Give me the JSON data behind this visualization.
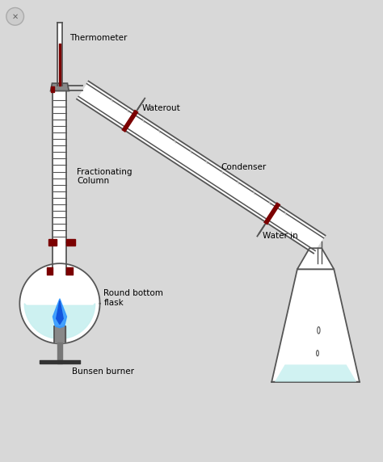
{
  "bg_color": "#d8d8d8",
  "inner_bg": "#ffffff",
  "labels": {
    "thermometer": "Thermometer",
    "fractionating": "Fractionating\nColumn",
    "waterout": "Waterout",
    "condenser": "Condenser",
    "round_bottom": "Round bottom\nflask",
    "water_in": "Water in",
    "bunsen": "Bunsen burner"
  },
  "colors": {
    "glass_outline": "#555555",
    "dark_red": "#7B0000",
    "liquid_blue": "#c8f0f0",
    "flame_blue": "#1144bb",
    "flame_light": "#4488ff",
    "stand_gray": "#666666",
    "label_color": "#000000",
    "white": "#ffffff",
    "gray_stopper": "#888888",
    "light_gray": "#bbbbbb"
  },
  "layout": {
    "xlim": [
      0,
      10
    ],
    "ylim": [
      0,
      12
    ],
    "figw": 4.74,
    "figh": 5.72,
    "dpi": 100
  }
}
